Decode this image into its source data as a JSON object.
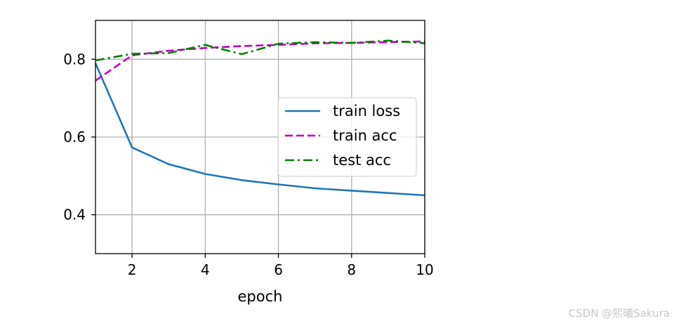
{
  "chart_data": {
    "type": "line",
    "xlabel": "epoch",
    "ylabel": "",
    "xlim": [
      1,
      10
    ],
    "ylim": [
      0.3,
      0.9
    ],
    "xticks": [
      2,
      4,
      6,
      8,
      10
    ],
    "yticks": [
      0.4,
      0.6,
      0.8
    ],
    "xtick_labels": [
      "2",
      "4",
      "6",
      "8",
      "10"
    ],
    "ytick_labels": [
      "0.4",
      "0.6",
      "0.8"
    ],
    "grid": true,
    "legend_position": "center-right",
    "series": [
      {
        "name": "train loss",
        "color": "#1f77b4",
        "dash": "solid",
        "x": [
          1,
          2,
          3,
          4,
          5,
          6,
          7,
          8,
          9,
          10
        ],
        "values": [
          0.79,
          0.573,
          0.53,
          0.505,
          0.489,
          0.478,
          0.468,
          0.462,
          0.456,
          0.45
        ]
      },
      {
        "name": "train acc",
        "color": "#bf00bf",
        "dash": "dashed",
        "x": [
          1,
          2,
          3,
          4,
          5,
          6,
          7,
          8,
          9,
          10
        ],
        "values": [
          0.745,
          0.81,
          0.822,
          0.829,
          0.834,
          0.837,
          0.841,
          0.842,
          0.844,
          0.846
        ]
      },
      {
        "name": "test acc",
        "color": "#008000",
        "dash": "dashdot",
        "x": [
          1,
          2,
          3,
          4,
          5,
          6,
          7,
          8,
          9,
          10
        ],
        "values": [
          0.797,
          0.814,
          0.816,
          0.837,
          0.813,
          0.84,
          0.844,
          0.842,
          0.848,
          0.841
        ]
      }
    ]
  },
  "watermark": "CSDN @熙曦Sakura"
}
